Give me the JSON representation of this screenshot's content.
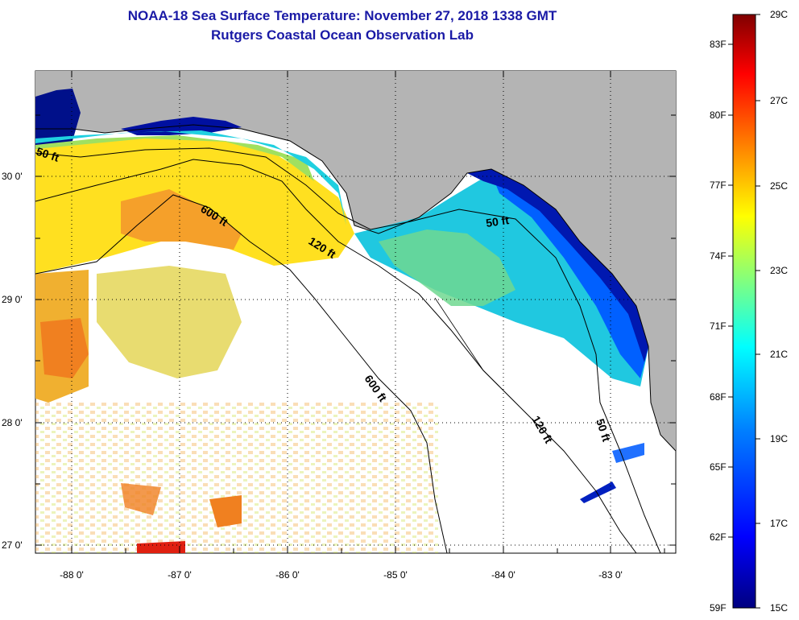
{
  "header": {
    "title_line1": "NOAA-18 Sea Surface Temperature:  November 27, 2018 1338 GMT",
    "title_line2": "Rutgers Coastal Ocean Observation Lab"
  },
  "map": {
    "lat_labels": [
      "30 0'",
      "29 0'",
      "28 0'",
      "27 0'"
    ],
    "lon_labels": [
      "-88 0'",
      "-87 0'",
      "-86 0'",
      "-85 0'",
      "-84 0'",
      "-83 0'"
    ],
    "contour_labels": {
      "c50_west": "50 ft",
      "c600_north": "600 ft",
      "c120_north": "120 ft",
      "c50_east": "50 ft",
      "c600_south": "600 ft",
      "c120_south": "120 ft",
      "c50_south": "50 ft"
    },
    "colors": {
      "land": "#b4b4b4",
      "cloud": "#ffffff"
    }
  },
  "colorbar": {
    "fahrenheit_labels": [
      "83F",
      "80F",
      "77F",
      "74F",
      "71F",
      "68F",
      "65F",
      "62F",
      "59F"
    ],
    "celsius_labels": [
      "29C",
      "27C",
      "25C",
      "23C",
      "21C",
      "19C",
      "17C",
      "15C"
    ],
    "gradient_stops": [
      "#800000",
      "#ff0000",
      "#ff8000",
      "#ffff00",
      "#80ff80",
      "#00ffff",
      "#0080ff",
      "#0000ff",
      "#000080"
    ]
  }
}
